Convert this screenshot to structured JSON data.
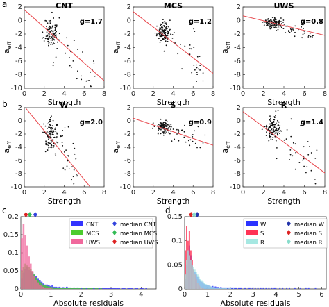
{
  "panel_letters": [
    "a",
    "b",
    "c",
    "d"
  ],
  "colors": {
    "fit": "#e8474c",
    "dot": "#111111",
    "CNT": "#3333ff",
    "MCS": "#4ccc2e",
    "UWS": "#f0689c",
    "W": "#2b33ff",
    "S": "#ff3355",
    "R": "#a6e8e2",
    "median_CNT": "#3344dd",
    "median_MCS": "#33bb55",
    "median_UWS": "#dd2222",
    "median_W": "#2233aa",
    "median_S": "#dd2222",
    "median_R": "#88ddcc"
  },
  "chart_data": [
    {
      "type": "scatter",
      "title": "CNT",
      "annotation": "g=1.7",
      "xlabel": "Strength",
      "ylabel": "a_eff",
      "xlim": [
        0,
        8
      ],
      "ylim": [
        -10,
        2
      ],
      "xticks": [
        0,
        2,
        4,
        6,
        8
      ],
      "yticks": [
        -10,
        -8,
        -6,
        -4,
        -2,
        0,
        2
      ],
      "fit_line": {
        "x": [
          0,
          8
        ],
        "y": [
          1.6,
          -8.9
        ]
      },
      "seed": 11,
      "n_points": 140,
      "cluster": {
        "x": 2.7,
        "y": -1.8,
        "sx": 0.35,
        "sy": 1.1
      },
      "tail": {
        "x_to": 7.2,
        "slope": -1.7,
        "spread": 1.8
      }
    },
    {
      "type": "scatter",
      "title": "MCS",
      "annotation": "g=1.2",
      "xlabel": "Strength",
      "ylabel": "a_eff",
      "xlim": [
        0,
        8
      ],
      "ylim": [
        -10,
        2
      ],
      "xticks": [
        0,
        2,
        4,
        6,
        8
      ],
      "yticks": [
        -10,
        -8,
        -6,
        -4,
        -2,
        0,
        2
      ],
      "fit_line": {
        "x": [
          0,
          8
        ],
        "y": [
          1.3,
          -7.8
        ]
      },
      "seed": 23,
      "n_points": 150,
      "cluster": {
        "x": 3.0,
        "y": -1.7,
        "sx": 0.3,
        "sy": 0.6
      },
      "tail": {
        "x_to": 7.0,
        "slope": -1.2,
        "spread": 1.6
      }
    },
    {
      "type": "scatter",
      "title": "UWS",
      "annotation": "g=0.8",
      "xlabel": "Strength",
      "ylabel": "a_eff",
      "xlim": [
        0,
        8
      ],
      "ylim": [
        -10,
        2
      ],
      "xticks": [
        0,
        2,
        4,
        6,
        8
      ],
      "yticks": [
        -10,
        -8,
        -6,
        -4,
        -2,
        0,
        2
      ],
      "fit_line": {
        "x": [
          0,
          8
        ],
        "y": [
          0.7,
          -2.2
        ]
      },
      "seed": 37,
      "n_points": 160,
      "cluster": {
        "x": 3.0,
        "y": -0.4,
        "sx": 0.45,
        "sy": 0.35
      },
      "tail": {
        "x_to": 7.2,
        "slope": -0.5,
        "spread": 0.5
      }
    },
    {
      "type": "scatter",
      "title": "W",
      "annotation": "g=2.0",
      "xlabel": "Strength",
      "ylabel": "a_eff",
      "xlim": [
        0,
        8
      ],
      "ylim": [
        -10,
        2
      ],
      "xticks": [
        0,
        2,
        4,
        6,
        8
      ],
      "yticks": [
        -10,
        -8,
        -6,
        -4,
        -2,
        0,
        2
      ],
      "fit_line": {
        "x": [
          0,
          6.6
        ],
        "y": [
          2.2,
          -10
        ]
      },
      "seed": 41,
      "n_points": 140,
      "cluster": {
        "x": 2.7,
        "y": -2.2,
        "sx": 0.35,
        "sy": 1.2
      },
      "tail": {
        "x_to": 5.5,
        "slope": -2.0,
        "spread": 1.8
      }
    },
    {
      "type": "scatter",
      "title": "S",
      "annotation": "g=0.9",
      "xlabel": "Strength",
      "ylabel": "a_eff",
      "xlim": [
        0,
        8
      ],
      "ylim": [
        -10,
        2
      ],
      "xticks": [
        0,
        2,
        4,
        6,
        8
      ],
      "yticks": [
        -10,
        -8,
        -6,
        -4,
        -2,
        0,
        2
      ],
      "fit_line": {
        "x": [
          0,
          8
        ],
        "y": [
          0.4,
          -3.7
        ]
      },
      "seed": 53,
      "n_points": 150,
      "cluster": {
        "x": 3.0,
        "y": -0.9,
        "sx": 0.4,
        "sy": 0.45
      },
      "tail": {
        "x_to": 7.2,
        "slope": -0.7,
        "spread": 0.9
      }
    },
    {
      "type": "scatter",
      "title": "R",
      "annotation": "g=1.4",
      "xlabel": "Strength",
      "ylabel": "a_eff",
      "xlim": [
        0,
        8
      ],
      "ylim": [
        -10,
        2
      ],
      "xticks": [
        0,
        2,
        4,
        6,
        8
      ],
      "yticks": [
        -10,
        -8,
        -6,
        -4,
        -2,
        0,
        2
      ],
      "fit_line": {
        "x": [
          0,
          8
        ],
        "y": [
          1.4,
          -7.9
        ]
      },
      "seed": 67,
      "n_points": 150,
      "cluster": {
        "x": 2.9,
        "y": -1.4,
        "sx": 0.35,
        "sy": 0.8
      },
      "tail": {
        "x_to": 7.4,
        "slope": -1.3,
        "spread": 1.6
      }
    },
    {
      "type": "bar",
      "subtype": "histogram",
      "xlabel": "Absolute residuals",
      "ylabel": "",
      "xlim": [
        0,
        4.5
      ],
      "ylim": [
        0,
        0.2
      ],
      "xticks": [
        0,
        1,
        2,
        3,
        4
      ],
      "yticks": [
        0,
        0.05,
        0.1,
        0.15,
        0.2
      ],
      "bin_width": 0.06,
      "series": [
        {
          "name": "CNT",
          "color_key": "CNT",
          "values": [
            0.03,
            0.045,
            0.055,
            0.06,
            0.052,
            0.05,
            0.045,
            0.04,
            0.035,
            0.03,
            0.025,
            0.02,
            0.015,
            0.012,
            0.012,
            0.01,
            0.008,
            0.01,
            0.006,
            0.006,
            0.005,
            0.006,
            0.004,
            0.005,
            0.004,
            0.006,
            0.004,
            0.004,
            0.003,
            0.004,
            0.003,
            0.004,
            0.002,
            0.003,
            0.003,
            0.002,
            0.003,
            0.002,
            0.003,
            0.002,
            0.002,
            0.003,
            0.002,
            0.002,
            0.002,
            0.002,
            0.002,
            0.002,
            0.002,
            0.002,
            0.002,
            0.002,
            0.002,
            0.002,
            0.002,
            0,
            0.002,
            0.002,
            0,
            0.002,
            0.002,
            0.002,
            0,
            0.002,
            0.002,
            0,
            0.002,
            0.002,
            0,
            0.002
          ]
        },
        {
          "name": "MCS",
          "color_key": "MCS",
          "values": [
            0.05,
            0.06,
            0.07,
            0.065,
            0.06,
            0.055,
            0.048,
            0.04,
            0.032,
            0.025,
            0.02,
            0.016,
            0.012,
            0.01,
            0.008,
            0.007,
            0.006,
            0.005,
            0.004,
            0.004,
            0.003,
            0.003,
            0.003,
            0.002,
            0.002,
            0.003,
            0.002,
            0.002,
            0.002,
            0.002,
            0.002,
            0.002,
            0.002,
            0,
            0.002,
            0.002,
            0,
            0.002,
            0.002,
            0.002,
            0,
            0.002,
            0.002,
            0,
            0.002
          ]
        },
        {
          "name": "UWS",
          "color_key": "UWS",
          "values": [
            0.14,
            0.18,
            0.15,
            0.12,
            0.09,
            0.07,
            0.05,
            0.035,
            0.025,
            0.018,
            0.012,
            0.009,
            0.006,
            0.004,
            0.003,
            0.002,
            0.002,
            0.001
          ]
        }
      ],
      "medians": [
        {
          "label": "median CNT",
          "value": 0.48,
          "color_key": "median_CNT"
        },
        {
          "label": "median MCS",
          "value": 0.3,
          "color_key": "median_MCS"
        },
        {
          "label": "median UWS",
          "value": 0.17,
          "color_key": "median_UWS"
        }
      ],
      "legend": {
        "placement": "top-right",
        "entries": [
          "CNT",
          "MCS",
          "UWS",
          "median CNT",
          "median MCS",
          "median UWS"
        ]
      }
    },
    {
      "type": "bar",
      "subtype": "histogram",
      "xlabel": "Absolute residuals",
      "ylabel": "",
      "xlim": [
        0,
        6.2
      ],
      "ylim": [
        0,
        0.15
      ],
      "xticks": [
        0,
        1,
        2,
        3,
        4,
        5,
        6
      ],
      "yticks": [
        0,
        0.05,
        0.1,
        0.15
      ],
      "bin_width": 0.06,
      "series": [
        {
          "name": "W",
          "color_key": "W",
          "values": [
            0.02,
            0.05,
            0.08,
            0.09,
            0.07,
            0.05,
            0.04,
            0.035,
            0.03,
            0.025,
            0.02,
            0.018,
            0.015,
            0.012,
            0.01,
            0.009,
            0.008,
            0.007,
            0.006,
            0.005,
            0.006,
            0.004,
            0.005,
            0.004,
            0.004,
            0.003,
            0.004,
            0.003,
            0.003,
            0.003,
            0.003,
            0.003,
            0.003,
            0.003,
            0.003,
            0.003,
            0.003,
            0.003,
            0,
            0.003,
            0.003,
            0.003,
            0,
            0.003,
            0.003,
            0,
            0.003,
            0.003,
            0,
            0.003,
            0,
            0.003,
            0,
            0.003,
            0,
            0.003,
            0,
            0.003,
            0,
            0.003,
            0,
            0.003,
            0,
            0.003,
            0,
            0.003,
            0.003,
            0,
            0,
            0.003,
            0,
            0.003,
            0,
            0,
            0.003,
            0,
            0.003,
            0,
            0,
            0,
            0.003,
            0,
            0,
            0,
            0.003,
            0,
            0,
            0,
            0.003,
            0,
            0.003,
            0,
            0,
            0,
            0,
            0.003,
            0,
            0,
            0,
            0
          ]
        },
        {
          "name": "S",
          "color_key": "S",
          "values": [
            0.08,
            0.13,
            0.1,
            0.12,
            0.08,
            0.06,
            0.04,
            0.03,
            0.02,
            0.012,
            0.008,
            0.005,
            0.003,
            0.002
          ]
        },
        {
          "name": "R",
          "color_key": "R",
          "values": [
            0.03,
            0.06,
            0.08,
            0.07,
            0.06,
            0.05,
            0.045,
            0.04,
            0.035,
            0.03,
            0.025,
            0.02,
            0.018,
            0.015,
            0.012,
            0.01,
            0.009,
            0.008,
            0.006,
            0.005,
            0.004,
            0.004,
            0.003,
            0.003,
            0.003,
            0.002,
            0.002,
            0.002,
            0.002,
            0.002,
            0.002,
            0,
            0.002,
            0.002,
            0,
            0.002
          ]
        }
      ],
      "medians": [
        {
          "label": "median W",
          "value": 0.55,
          "color_key": "median_W"
        },
        {
          "label": "median S",
          "value": 0.28,
          "color_key": "median_S"
        },
        {
          "label": "median R",
          "value": 0.42,
          "color_key": "median_R"
        }
      ],
      "legend": {
        "placement": "top-right",
        "entries": [
          "W",
          "S",
          "R",
          "median W",
          "median S",
          "median R"
        ]
      }
    }
  ]
}
